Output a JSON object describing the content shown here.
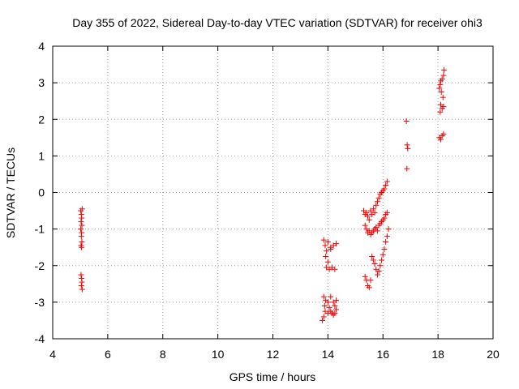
{
  "chart_data": {
    "type": "scatter",
    "title": "Day 355 of 2022, Sidereal Day-to-day VTEC variation (SDTVAR) for receiver ohi3",
    "xlabel": "GPS time / hours",
    "ylabel": "SDTVAR / TECUs",
    "xlim": [
      4,
      20
    ],
    "ylim": [
      -4,
      4
    ],
    "xticks": [
      "4",
      "6",
      "8",
      "10",
      "12",
      "14",
      "16",
      "18",
      "20"
    ],
    "yticks": [
      "-4",
      "-3",
      "-2",
      "-1",
      "0",
      "1",
      "2",
      "3",
      "4"
    ],
    "grid": true,
    "marker": "+",
    "color": "#ee0000",
    "series": [
      {
        "name": "SDTVAR",
        "points": [
          [
            5.02,
            -0.5
          ],
          [
            5.04,
            -0.6
          ],
          [
            5.05,
            -0.7
          ],
          [
            5.03,
            -0.8
          ],
          [
            5.06,
            -0.9
          ],
          [
            5.02,
            -1.0
          ],
          [
            5.05,
            -1.1
          ],
          [
            5.04,
            -1.2
          ],
          [
            5.06,
            -1.35
          ],
          [
            5.03,
            -1.45
          ],
          [
            5.05,
            -1.5
          ],
          [
            5.07,
            -0.45
          ],
          [
            5.03,
            -2.25
          ],
          [
            5.05,
            -2.35
          ],
          [
            5.06,
            -2.45
          ],
          [
            5.04,
            -2.55
          ],
          [
            5.07,
            -2.65
          ],
          [
            13.85,
            -1.3
          ],
          [
            13.9,
            -1.45
          ],
          [
            13.95,
            -1.6
          ],
          [
            13.92,
            -1.75
          ],
          [
            14.0,
            -1.9
          ],
          [
            13.95,
            -2.05
          ],
          [
            14.05,
            -2.1
          ],
          [
            14.15,
            -2.05
          ],
          [
            14.25,
            -2.1
          ],
          [
            14.1,
            -1.5
          ],
          [
            14.2,
            -1.45
          ],
          [
            14.3,
            -1.4
          ],
          [
            14.0,
            -1.35
          ],
          [
            14.1,
            -1.55
          ],
          [
            13.8,
            -3.5
          ],
          [
            13.85,
            -3.4
          ],
          [
            13.9,
            -3.25
          ],
          [
            13.88,
            -3.1
          ],
          [
            13.92,
            -2.95
          ],
          [
            13.85,
            -2.85
          ],
          [
            14.0,
            -3.0
          ],
          [
            14.05,
            -3.15
          ],
          [
            14.1,
            -3.25
          ],
          [
            14.15,
            -3.3
          ],
          [
            14.2,
            -3.35
          ],
          [
            14.25,
            -3.3
          ],
          [
            14.3,
            -3.2
          ],
          [
            14.2,
            -3.0
          ],
          [
            14.3,
            -2.95
          ],
          [
            14.1,
            -2.85
          ],
          [
            14.25,
            -3.1
          ],
          [
            14.0,
            -3.3
          ],
          [
            15.3,
            -0.5
          ],
          [
            15.35,
            -0.6
          ],
          [
            15.4,
            -0.55
          ],
          [
            15.45,
            -0.65
          ],
          [
            15.5,
            -0.75
          ],
          [
            15.55,
            -0.5
          ],
          [
            15.6,
            -0.6
          ],
          [
            15.65,
            -0.45
          ],
          [
            15.7,
            -0.55
          ],
          [
            15.75,
            -0.35
          ],
          [
            15.8,
            -0.25
          ],
          [
            15.85,
            -0.15
          ],
          [
            15.9,
            -0.05
          ],
          [
            15.95,
            0.0
          ],
          [
            16.0,
            0.05
          ],
          [
            16.05,
            0.1
          ],
          [
            16.1,
            0.2
          ],
          [
            16.15,
            0.3
          ],
          [
            15.35,
            -0.9
          ],
          [
            15.4,
            -1.0
          ],
          [
            15.45,
            -1.1
          ],
          [
            15.5,
            -1.05
          ],
          [
            15.55,
            -1.15
          ],
          [
            15.6,
            -1.1
          ],
          [
            15.65,
            -1.05
          ],
          [
            15.7,
            -1.0
          ],
          [
            15.75,
            -0.95
          ],
          [
            15.8,
            -1.05
          ],
          [
            15.85,
            -0.9
          ],
          [
            15.9,
            -0.85
          ],
          [
            15.95,
            -0.8
          ],
          [
            16.0,
            -0.75
          ],
          [
            16.05,
            -0.7
          ],
          [
            16.1,
            -0.6
          ],
          [
            16.15,
            -0.55
          ],
          [
            15.35,
            -2.3
          ],
          [
            15.4,
            -2.4
          ],
          [
            15.45,
            -2.55
          ],
          [
            15.5,
            -2.6
          ],
          [
            15.55,
            -2.4
          ],
          [
            15.6,
            -1.75
          ],
          [
            15.65,
            -1.85
          ],
          [
            15.7,
            -1.95
          ],
          [
            15.75,
            -2.1
          ],
          [
            15.8,
            -2.25
          ],
          [
            15.85,
            -2.15
          ],
          [
            15.9,
            -2.0
          ],
          [
            15.95,
            -1.85
          ],
          [
            16.0,
            -1.7
          ],
          [
            16.05,
            -1.55
          ],
          [
            16.1,
            -1.35
          ],
          [
            16.15,
            -1.2
          ],
          [
            16.2,
            -1.0
          ],
          [
            16.85,
            1.95
          ],
          [
            16.88,
            1.3
          ],
          [
            16.9,
            1.2
          ],
          [
            16.87,
            0.65
          ],
          [
            18.05,
            2.85
          ],
          [
            18.08,
            2.95
          ],
          [
            18.1,
            3.05
          ],
          [
            18.15,
            3.1
          ],
          [
            18.2,
            3.2
          ],
          [
            18.22,
            3.35
          ],
          [
            18.12,
            2.75
          ],
          [
            18.18,
            2.6
          ],
          [
            18.1,
            2.4
          ],
          [
            18.15,
            2.3
          ],
          [
            18.2,
            2.35
          ],
          [
            18.08,
            2.2
          ],
          [
            18.05,
            1.5
          ],
          [
            18.1,
            1.45
          ],
          [
            18.15,
            1.55
          ],
          [
            18.2,
            1.6
          ]
        ]
      }
    ]
  }
}
